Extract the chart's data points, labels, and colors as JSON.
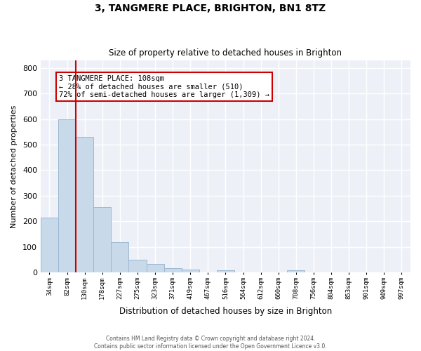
{
  "title": "3, TANGMERE PLACE, BRIGHTON, BN1 8TZ",
  "subtitle": "Size of property relative to detached houses in Brighton",
  "xlabel": "Distribution of detached houses by size in Brighton",
  "ylabel": "Number of detached properties",
  "bin_labels": [
    "34sqm",
    "82sqm",
    "130sqm",
    "178sqm",
    "227sqm",
    "275sqm",
    "323sqm",
    "371sqm",
    "419sqm",
    "467sqm",
    "516sqm",
    "564sqm",
    "612sqm",
    "660sqm",
    "708sqm",
    "756sqm",
    "804sqm",
    "853sqm",
    "901sqm",
    "949sqm",
    "997sqm"
  ],
  "bar_values": [
    215,
    600,
    530,
    255,
    117,
    50,
    33,
    18,
    11,
    0,
    8,
    0,
    0,
    0,
    8,
    0,
    0,
    0,
    0,
    0,
    0
  ],
  "bar_color": "#c8d9ea",
  "bar_edge_color": "#9db8d2",
  "vline_color": "#cc0000",
  "annotation_text": "3 TANGMERE PLACE: 108sqm\n← 28% of detached houses are smaller (510)\n72% of semi-detached houses are larger (1,309) →",
  "annotation_box_color": "#ffffff",
  "annotation_box_edge": "#cc0000",
  "ylim": [
    0,
    830
  ],
  "yticks": [
    0,
    100,
    200,
    300,
    400,
    500,
    600,
    700,
    800
  ],
  "footer_line1": "Contains HM Land Registry data © Crown copyright and database right 2024.",
  "footer_line2": "Contains public sector information licensed under the Open Government Licence v3.0.",
  "bg_color": "#edf1f7"
}
